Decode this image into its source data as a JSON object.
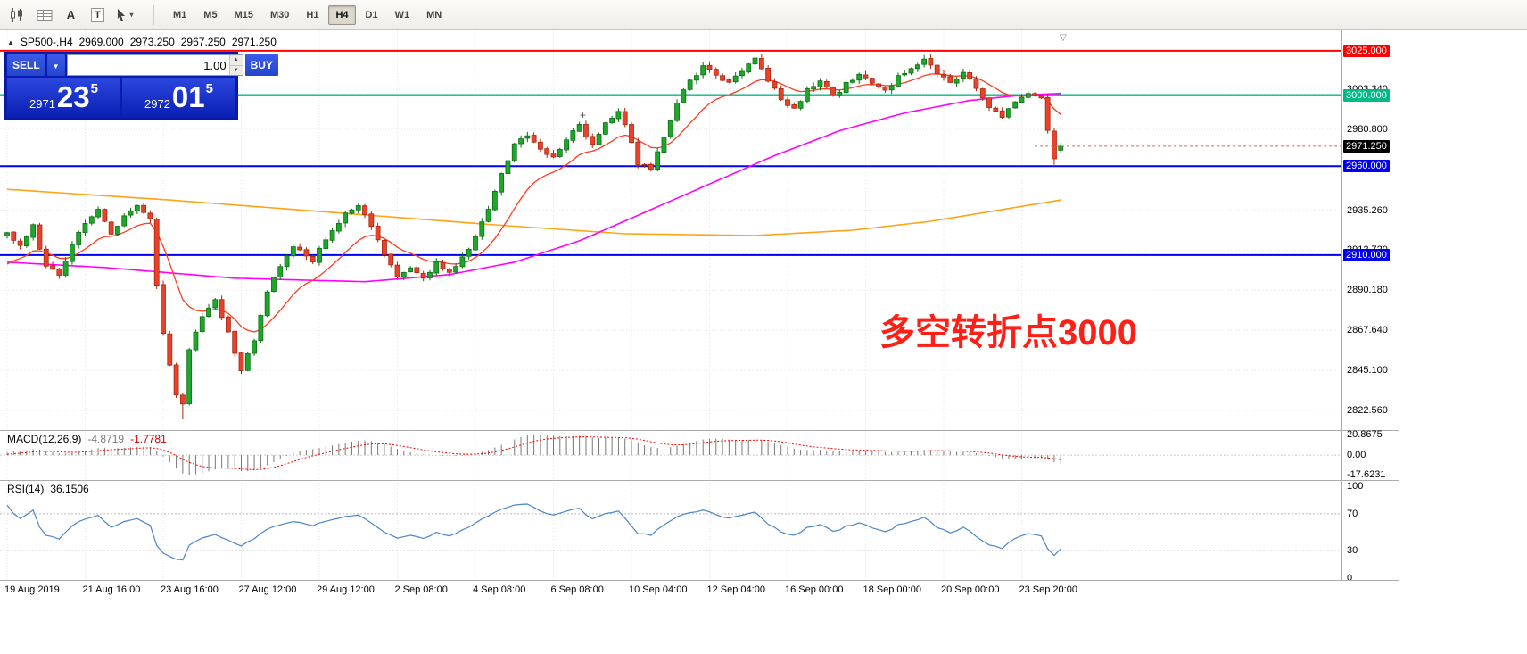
{
  "toolbar": {
    "tools": [
      {
        "name": "charts",
        "label": ""
      },
      {
        "name": "indicators",
        "label": ""
      },
      {
        "name": "font",
        "label": "A"
      },
      {
        "name": "text",
        "label": "T"
      },
      {
        "name": "cursor",
        "label": ""
      }
    ],
    "timeframes": [
      {
        "label": "M1",
        "active": false
      },
      {
        "label": "M5",
        "active": false
      },
      {
        "label": "M15",
        "active": false
      },
      {
        "label": "M30",
        "active": false
      },
      {
        "label": "H1",
        "active": false
      },
      {
        "label": "H4",
        "active": true
      },
      {
        "label": "D1",
        "active": false
      },
      {
        "label": "W1",
        "active": false
      },
      {
        "label": "MN",
        "active": false
      }
    ]
  },
  "chart": {
    "header": {
      "marker": "▲",
      "symbol": "SP500-,H4",
      "open": "2969.000",
      "high": "2973.250",
      "low": "2967.250",
      "close": "2971.250"
    },
    "trade_panel": {
      "sell_label": "SELL",
      "buy_label": "BUY",
      "volume": "1.00",
      "caret": "▼",
      "spin_up": "▲",
      "spin_down": "▼",
      "sell_price": {
        "prefix": "2971",
        "big": "23",
        "sup": "5"
      },
      "buy_price": {
        "prefix": "2972",
        "big": "01",
        "sup": "5"
      }
    },
    "annotation": {
      "text": "多空转折点3000"
    },
    "shift_marker": "▽",
    "plus_marker": "+",
    "hlines": [
      {
        "price": 3025.0,
        "label": "3025.000",
        "color": "#FF0000",
        "width": 2
      },
      {
        "price": 3000.0,
        "label": "3000.000",
        "color": "#00BA86",
        "width": 2.4
      },
      {
        "price": 2960.0,
        "label": "2960.000",
        "color": "#0000F0",
        "width": 2
      },
      {
        "price": 2910.0,
        "label": "2910.000",
        "color": "#0000F0",
        "width": 2
      }
    ],
    "bid": {
      "price": 2971.25,
      "label": "2971.250",
      "badge": "#000000",
      "line_color": "#E06060"
    },
    "axis_labels": [
      {
        "price": 3003.34,
        "label": "3003.340"
      },
      {
        "price": 2980.8,
        "label": "2980.800"
      },
      {
        "price": 2935.26,
        "label": "2935.260"
      },
      {
        "price": 2912.72,
        "label": "2912.720"
      },
      {
        "price": 2890.18,
        "label": "2890.180"
      },
      {
        "price": 2867.64,
        "label": "2867.640"
      },
      {
        "price": 2845.1,
        "label": "2845.100"
      },
      {
        "price": 2822.56,
        "label": "2822.560"
      }
    ],
    "time_labels": [
      "19 Aug 2019",
      "21 Aug 16:00",
      "23 Aug 16:00",
      "27 Aug 12:00",
      "29 Aug 12:00",
      "2 Sep 08:00",
      "4 Sep 08:00",
      "6 Sep 08:00",
      "10 Sep 04:00",
      "12 Sep 04:00",
      "16 Sep 00:00",
      "18 Sep 00:00",
      "20 Sep 00:00",
      "23 Sep 20:00"
    ],
    "candle_anchors": [
      [
        0,
        2922
      ],
      [
        2,
        2916
      ],
      [
        4,
        2926
      ],
      [
        6,
        2903
      ],
      [
        8,
        2899
      ],
      [
        10,
        2916
      ],
      [
        12,
        2929
      ],
      [
        14,
        2936
      ],
      [
        16,
        2921
      ],
      [
        18,
        2933
      ],
      [
        20,
        2937
      ],
      [
        22,
        2930
      ],
      [
        23,
        2892
      ],
      [
        24,
        2866
      ],
      [
        25,
        2848
      ],
      [
        26,
        2832
      ],
      [
        27,
        2826
      ],
      [
        28,
        2856
      ],
      [
        30,
        2876
      ],
      [
        32,
        2884
      ],
      [
        34,
        2866
      ],
      [
        36,
        2845
      ],
      [
        38,
        2862
      ],
      [
        40,
        2890
      ],
      [
        42,
        2903
      ],
      [
        44,
        2915
      ],
      [
        47,
        2907
      ],
      [
        50,
        2924
      ],
      [
        52,
        2933
      ],
      [
        54,
        2938
      ],
      [
        56,
        2926
      ],
      [
        58,
        2910
      ],
      [
        60,
        2898
      ],
      [
        62,
        2903
      ],
      [
        64,
        2896
      ],
      [
        66,
        2906
      ],
      [
        68,
        2900
      ],
      [
        70,
        2908
      ],
      [
        72,
        2920
      ],
      [
        74,
        2936
      ],
      [
        76,
        2956
      ],
      [
        78,
        2972
      ],
      [
        80,
        2978
      ],
      [
        82,
        2969
      ],
      [
        84,
        2965
      ],
      [
        86,
        2976
      ],
      [
        88,
        2983
      ],
      [
        90,
        2972
      ],
      [
        92,
        2985
      ],
      [
        94,
        2990
      ],
      [
        95,
        2983
      ],
      [
        97,
        2962
      ],
      [
        99,
        2958
      ],
      [
        101,
        2976
      ],
      [
        103,
        2996
      ],
      [
        105,
        3008
      ],
      [
        107,
        3016
      ],
      [
        109,
        3011
      ],
      [
        111,
        3007
      ],
      [
        113,
        3014
      ],
      [
        115,
        3021
      ],
      [
        117,
        3009
      ],
      [
        119,
        2997
      ],
      [
        121,
        2992
      ],
      [
        123,
        3003
      ],
      [
        125,
        3008
      ],
      [
        127,
        2999
      ],
      [
        129,
        3006
      ],
      [
        131,
        3012
      ],
      [
        133,
        3007
      ],
      [
        135,
        3002
      ],
      [
        137,
        3010
      ],
      [
        139,
        3016
      ],
      [
        141,
        3020
      ],
      [
        143,
        3012
      ],
      [
        145,
        3007
      ],
      [
        147,
        3013
      ],
      [
        149,
        3004
      ],
      [
        151,
        2994
      ],
      [
        153,
        2988
      ],
      [
        155,
        2996
      ],
      [
        157,
        3002
      ],
      [
        159,
        2998
      ],
      [
        161,
        2964
      ],
      [
        162,
        2971.25
      ]
    ],
    "ma_mid_anchors": [
      [
        0,
        2906
      ],
      [
        15,
        2903
      ],
      [
        35,
        2897
      ],
      [
        55,
        2895
      ],
      [
        68,
        2899
      ],
      [
        78,
        2906
      ],
      [
        88,
        2918
      ],
      [
        98,
        2934
      ],
      [
        108,
        2950
      ],
      [
        118,
        2966
      ],
      [
        128,
        2980
      ],
      [
        138,
        2990
      ],
      [
        148,
        2997
      ],
      [
        156,
        3000
      ],
      [
        162,
        3001
      ]
    ],
    "ma_slow_anchors": [
      [
        0,
        2947
      ],
      [
        25,
        2941
      ],
      [
        50,
        2934
      ],
      [
        75,
        2927
      ],
      [
        95,
        2922
      ],
      [
        115,
        2921
      ],
      [
        130,
        2924
      ],
      [
        142,
        2929
      ],
      [
        152,
        2935
      ],
      [
        162,
        2941
      ]
    ],
    "colors": {
      "up": "#1FA72C",
      "up_edge": "#0B6E12",
      "down": "#E8432A",
      "down_edge": "#A8260F",
      "ma_fast": "#FF3B1F",
      "ma_mid": "#FF00FF",
      "ma_slow": "#FFA317",
      "grid": "#E7E7E7"
    }
  },
  "macd": {
    "name": "MACD(12,26,9)",
    "value": "-4.8719",
    "signal": "-1.7781",
    "axis": [
      "20.8675",
      "0.00",
      "-17.6231"
    ],
    "hist_color": "#777777",
    "signal_color": "#FF0000"
  },
  "rsi": {
    "name": "RSI(14)",
    "value": "36.1506",
    "axis": [
      {
        "label": "100",
        "value": 100
      },
      {
        "label": "70",
        "value": 70
      },
      {
        "label": "30",
        "value": 30
      },
      {
        "label": "0",
        "value": 0
      }
    ],
    "levels": [
      70,
      30
    ],
    "line_color": "#4A86C8"
  }
}
